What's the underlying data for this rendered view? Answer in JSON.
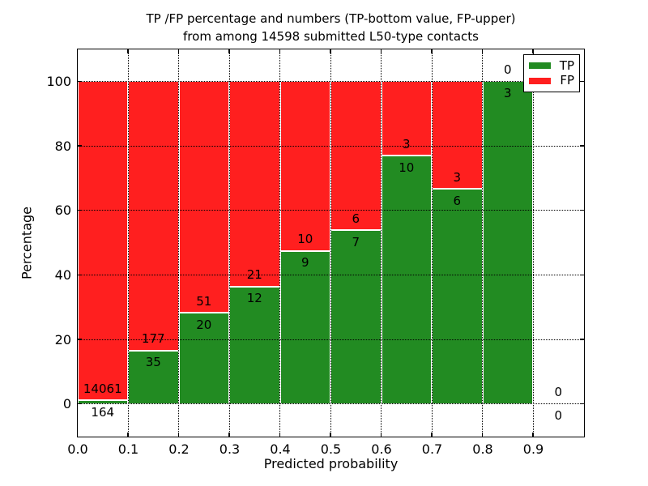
{
  "chart_data": {
    "type": "bar",
    "stacked": true,
    "percent_normalized": true,
    "title_line1": "TP /FP percentage and numbers (TP-bottom value, FP-upper)",
    "title_line2": "from among 14598 submitted L50-type contacts",
    "xlabel": "Predicted probability",
    "ylabel": "Percentage",
    "xlim": [
      0.0,
      1.0
    ],
    "ylim": [
      -10,
      110
    ],
    "grid": true,
    "bin_edges": [
      0.0,
      0.1,
      0.2,
      0.3,
      0.4,
      0.5,
      0.6,
      0.7,
      0.8,
      0.9,
      1.0
    ],
    "x_tick_labels": [
      "0.0",
      "0.1",
      "0.2",
      "0.3",
      "0.4",
      "0.5",
      "0.6",
      "0.7",
      "0.8",
      "0.9"
    ],
    "y_tick_values": [
      0,
      20,
      40,
      60,
      80,
      100
    ],
    "y_tick_labels": [
      "0",
      "20",
      "40",
      "60",
      "80",
      "100"
    ],
    "series": [
      {
        "name": "TP",
        "color": "#228b22",
        "counts": [
          164,
          35,
          20,
          12,
          9,
          7,
          10,
          6,
          3,
          0
        ]
      },
      {
        "name": "FP",
        "color": "#ff1f1f",
        "counts": [
          14061,
          177,
          51,
          21,
          10,
          6,
          3,
          3,
          0,
          0
        ]
      }
    ],
    "tp_percentages": [
      1.2,
      16.5,
      28.2,
      36.4,
      47.4,
      53.8,
      76.9,
      66.7,
      100.0,
      null
    ],
    "total_contacts_in_title": "14598",
    "legend": {
      "position": "upper right",
      "entries": [
        {
          "label": "TP",
          "color": "#228b22"
        },
        {
          "label": "FP",
          "color": "#ff1f1f"
        }
      ]
    }
  }
}
